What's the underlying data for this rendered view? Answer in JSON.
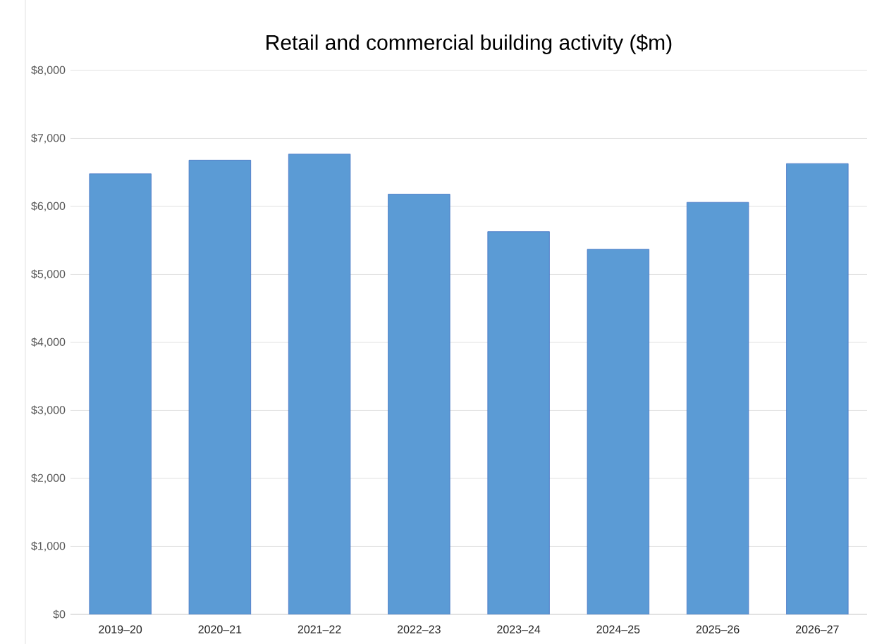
{
  "chart_data": {
    "type": "bar",
    "title": "Retail and commercial building activity ($m)",
    "categories": [
      "2019–20",
      "2020–21",
      "2021–22",
      "2022–23",
      "2023–24",
      "2024–25",
      "2025–26",
      "2026–27"
    ],
    "values": [
      6480,
      6680,
      6770,
      6180,
      5630,
      5370,
      6060,
      6630
    ],
    "color": "#5b9bd5",
    "ylim": [
      0,
      8000
    ],
    "yticks": [
      {
        "value": 0,
        "label": "$0"
      },
      {
        "value": 1000,
        "label": "$1,000"
      },
      {
        "value": 2000,
        "label": "$2,000"
      },
      {
        "value": 3000,
        "label": "$3,000"
      },
      {
        "value": 4000,
        "label": "$4,000"
      },
      {
        "value": 5000,
        "label": "$5,000"
      },
      {
        "value": 6000,
        "label": "$6,000"
      },
      {
        "value": 7000,
        "label": "$7,000"
      },
      {
        "value": 8000,
        "label": "$8,000"
      }
    ],
    "grid": "y"
  }
}
